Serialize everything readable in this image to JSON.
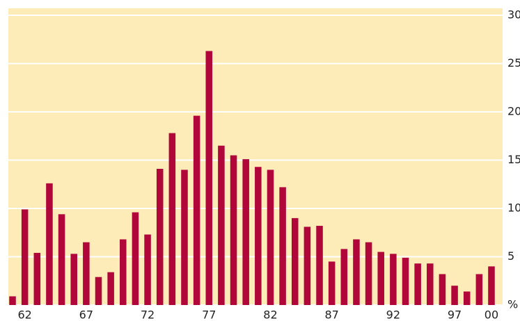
{
  "chart_data": {
    "type": "bar",
    "categories": [
      null,
      "62",
      null,
      null,
      null,
      null,
      "67",
      null,
      null,
      null,
      null,
      "72",
      null,
      null,
      null,
      null,
      "77",
      null,
      null,
      null,
      null,
      "82",
      null,
      null,
      null,
      null,
      "87",
      null,
      null,
      null,
      null,
      "92",
      null,
      null,
      null,
      null,
      "97",
      null,
      null,
      "00"
    ],
    "values": [
      0.9,
      9.9,
      5.4,
      12.6,
      9.4,
      5.3,
      6.5,
      2.9,
      3.4,
      6.8,
      9.6,
      7.3,
      14.1,
      17.8,
      14.0,
      19.6,
      26.3,
      16.5,
      15.5,
      15.1,
      14.3,
      14.0,
      12.2,
      9.0,
      8.1,
      8.2,
      4.5,
      5.8,
      6.8,
      6.5,
      5.5,
      5.3,
      4.9,
      4.3,
      4.3,
      3.2,
      2.0,
      1.4,
      3.2,
      4.0
    ],
    "color": "#b0063a",
    "ylim": [
      0,
      30
    ],
    "yticks": [
      {
        "value": 0,
        "label": "%"
      },
      5,
      10,
      15,
      20,
      25,
      30
    ],
    "grid": true
  }
}
